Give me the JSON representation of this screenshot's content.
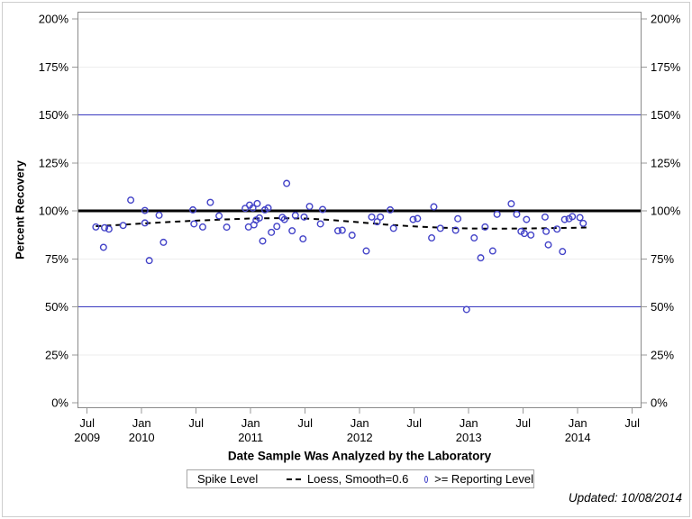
{
  "page": {
    "updated_note": "Updated: 10/08/2014"
  },
  "chart_data": {
    "type": "scatter",
    "title": "",
    "xlabel": "Date Sample Was Analyzed by the Laboratory",
    "ylabel": "Percent Recovery",
    "xlim": [
      2009.5,
      2014.5
    ],
    "ylim": [
      0,
      200
    ],
    "grid": true,
    "gridline_color": "#ededed",
    "axis_frame_color": "#8a8a8a",
    "tick_color": "#999999",
    "marker_color": "#4343c8",
    "reference_line_color": "#3a3ac0",
    "spike_level_color": "#000000",
    "y_ticks": [
      {
        "value": 0,
        "label": "0%"
      },
      {
        "value": 25,
        "label": "25%"
      },
      {
        "value": 50,
        "label": "50%"
      },
      {
        "value": 75,
        "label": "75%"
      },
      {
        "value": 100,
        "label": "100%"
      },
      {
        "value": 125,
        "label": "125%"
      },
      {
        "value": 150,
        "label": "150%"
      },
      {
        "value": 175,
        "label": "175%"
      },
      {
        "value": 200,
        "label": "200%"
      }
    ],
    "x_ticks": [
      {
        "pos": 2009.5,
        "month": "Jul",
        "year": "2009"
      },
      {
        "pos": 2010.0,
        "month": "Jan",
        "year": "2010"
      },
      {
        "pos": 2010.5,
        "month": "Jul",
        "year": ""
      },
      {
        "pos": 2011.0,
        "month": "Jan",
        "year": "2011"
      },
      {
        "pos": 2011.5,
        "month": "Jul",
        "year": ""
      },
      {
        "pos": 2012.0,
        "month": "Jan",
        "year": "2012"
      },
      {
        "pos": 2012.5,
        "month": "Jul",
        "year": ""
      },
      {
        "pos": 2013.0,
        "month": "Jan",
        "year": "2013"
      },
      {
        "pos": 2013.5,
        "month": "Jul",
        "year": ""
      },
      {
        "pos": 2014.0,
        "month": "Jan",
        "year": "2014"
      },
      {
        "pos": 2014.5,
        "month": "Jul",
        "year": ""
      }
    ],
    "reference_lines": [
      {
        "name": "upper-limit-line",
        "value": 150,
        "color": "#3a3ac0",
        "width": 1.25
      },
      {
        "name": "lower-limit-line",
        "value": 50,
        "color": "#3a3ac0",
        "width": 1.25
      },
      {
        "name": "spike-level-line",
        "value": 100,
        "color": "#000000",
        "width": 3
      }
    ],
    "legend": {
      "title": "Spike Level",
      "entries": [
        {
          "swatch": "dashed-line",
          "label": "Loess, Smooth=0.6"
        },
        {
          "swatch": "circle-marker",
          "label": ">= Reporting Level"
        }
      ]
    },
    "series": [
      {
        "name": ">= Reporting Level",
        "type": "scatter",
        "marker": "open-circle",
        "color": "#4343c8",
        "points": [
          [
            2009.58,
            91.6
          ],
          [
            2009.65,
            81.0
          ],
          [
            2009.66,
            91.2
          ],
          [
            2009.7,
            90.5
          ],
          [
            2009.83,
            92.4
          ],
          [
            2009.9,
            105.6
          ],
          [
            2010.03,
            100.2
          ],
          [
            2010.03,
            93.7
          ],
          [
            2010.07,
            74.1
          ],
          [
            2010.16,
            97.7
          ],
          [
            2010.2,
            83.6
          ],
          [
            2010.47,
            100.5
          ],
          [
            2010.48,
            93.2
          ],
          [
            2010.56,
            91.6
          ],
          [
            2010.63,
            104.4
          ],
          [
            2010.71,
            97.4
          ],
          [
            2010.78,
            91.5
          ],
          [
            2010.95,
            101.3
          ],
          [
            2010.98,
            91.6
          ],
          [
            2010.99,
            103.0
          ],
          [
            2011.02,
            101.5
          ],
          [
            2011.03,
            92.7
          ],
          [
            2011.05,
            95.2
          ],
          [
            2011.06,
            103.8
          ],
          [
            2011.08,
            96.3
          ],
          [
            2011.11,
            84.3
          ],
          [
            2011.13,
            100.5
          ],
          [
            2011.16,
            101.5
          ],
          [
            2011.19,
            88.8
          ],
          [
            2011.24,
            91.9
          ],
          [
            2011.29,
            96.6
          ],
          [
            2011.31,
            95.5
          ],
          [
            2011.33,
            114.3
          ],
          [
            2011.38,
            89.6
          ],
          [
            2011.41,
            97.6
          ],
          [
            2011.48,
            85.4
          ],
          [
            2011.49,
            96.8
          ],
          [
            2011.54,
            102.3
          ],
          [
            2011.64,
            93.2
          ],
          [
            2011.66,
            100.7
          ],
          [
            2011.8,
            89.6
          ],
          [
            2011.84,
            89.9
          ],
          [
            2011.93,
            87.3
          ],
          [
            2012.06,
            79.1
          ],
          [
            2012.11,
            96.8
          ],
          [
            2012.16,
            94.3
          ],
          [
            2012.19,
            96.8
          ],
          [
            2012.28,
            100.5
          ],
          [
            2012.31,
            90.9
          ],
          [
            2012.49,
            95.5
          ],
          [
            2012.53,
            96.0
          ],
          [
            2012.66,
            85.9
          ],
          [
            2012.68,
            102.1
          ],
          [
            2012.74,
            90.9
          ],
          [
            2012.88,
            89.9
          ],
          [
            2012.9,
            95.9
          ],
          [
            2012.98,
            48.6
          ],
          [
            2013.05,
            85.9
          ],
          [
            2013.11,
            75.5
          ],
          [
            2013.15,
            91.6
          ],
          [
            2013.22,
            79.1
          ],
          [
            2013.26,
            98.2
          ],
          [
            2013.39,
            103.7
          ],
          [
            2013.44,
            98.2
          ],
          [
            2013.48,
            89.3
          ],
          [
            2013.51,
            88.2
          ],
          [
            2013.53,
            95.5
          ],
          [
            2013.57,
            87.4
          ],
          [
            2013.7,
            96.8
          ],
          [
            2013.71,
            89.3
          ],
          [
            2013.73,
            82.3
          ],
          [
            2013.81,
            90.5
          ],
          [
            2013.86,
            78.8
          ],
          [
            2013.88,
            95.5
          ],
          [
            2013.92,
            95.9
          ],
          [
            2013.95,
            97.0
          ],
          [
            2014.02,
            96.5
          ],
          [
            2014.05,
            93.5
          ]
        ]
      },
      {
        "name": "Loess, Smooth=0.6",
        "type": "line",
        "style": "dashed",
        "color": "#000000",
        "points": [
          [
            2009.58,
            92.0
          ],
          [
            2009.75,
            92.5
          ],
          [
            2010.0,
            93.4
          ],
          [
            2010.25,
            94.2
          ],
          [
            2010.5,
            94.9
          ],
          [
            2010.75,
            95.5
          ],
          [
            2011.0,
            96.0
          ],
          [
            2011.25,
            96.2
          ],
          [
            2011.5,
            96.0
          ],
          [
            2011.75,
            95.2
          ],
          [
            2012.0,
            94.0
          ],
          [
            2012.25,
            92.8
          ],
          [
            2012.5,
            91.9
          ],
          [
            2012.75,
            91.2
          ],
          [
            2013.0,
            90.8
          ],
          [
            2013.25,
            90.7
          ],
          [
            2013.5,
            90.8
          ],
          [
            2013.75,
            91.0
          ],
          [
            2014.0,
            91.2
          ],
          [
            2014.08,
            91.3
          ]
        ]
      }
    ]
  }
}
